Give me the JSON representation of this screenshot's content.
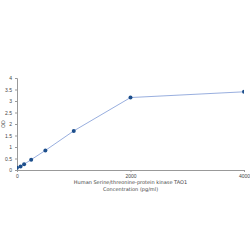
{
  "chart_data": {
    "type": "line",
    "xlabel": "Human Serine/threonine-protein kinase TAO1 Concentration (pg/ml)",
    "ylabel": "OD",
    "x": [
      0,
      62.5,
      125,
      250,
      500,
      1000,
      2000,
      4000
    ],
    "values": [
      0.1,
      0.15,
      0.25,
      0.45,
      0.85,
      1.7,
      3.15,
      3.4
    ],
    "color": "#7d99d6",
    "marker": "circle",
    "line_style": "solid",
    "grid": false,
    "xlim": [
      0,
      4000
    ],
    "xticks": [
      0,
      2000,
      4000
    ],
    "ylim": [
      0,
      4
    ],
    "yticks": [
      0,
      0.5,
      1,
      1.5,
      2,
      2.5,
      3,
      3.5,
      4
    ]
  }
}
